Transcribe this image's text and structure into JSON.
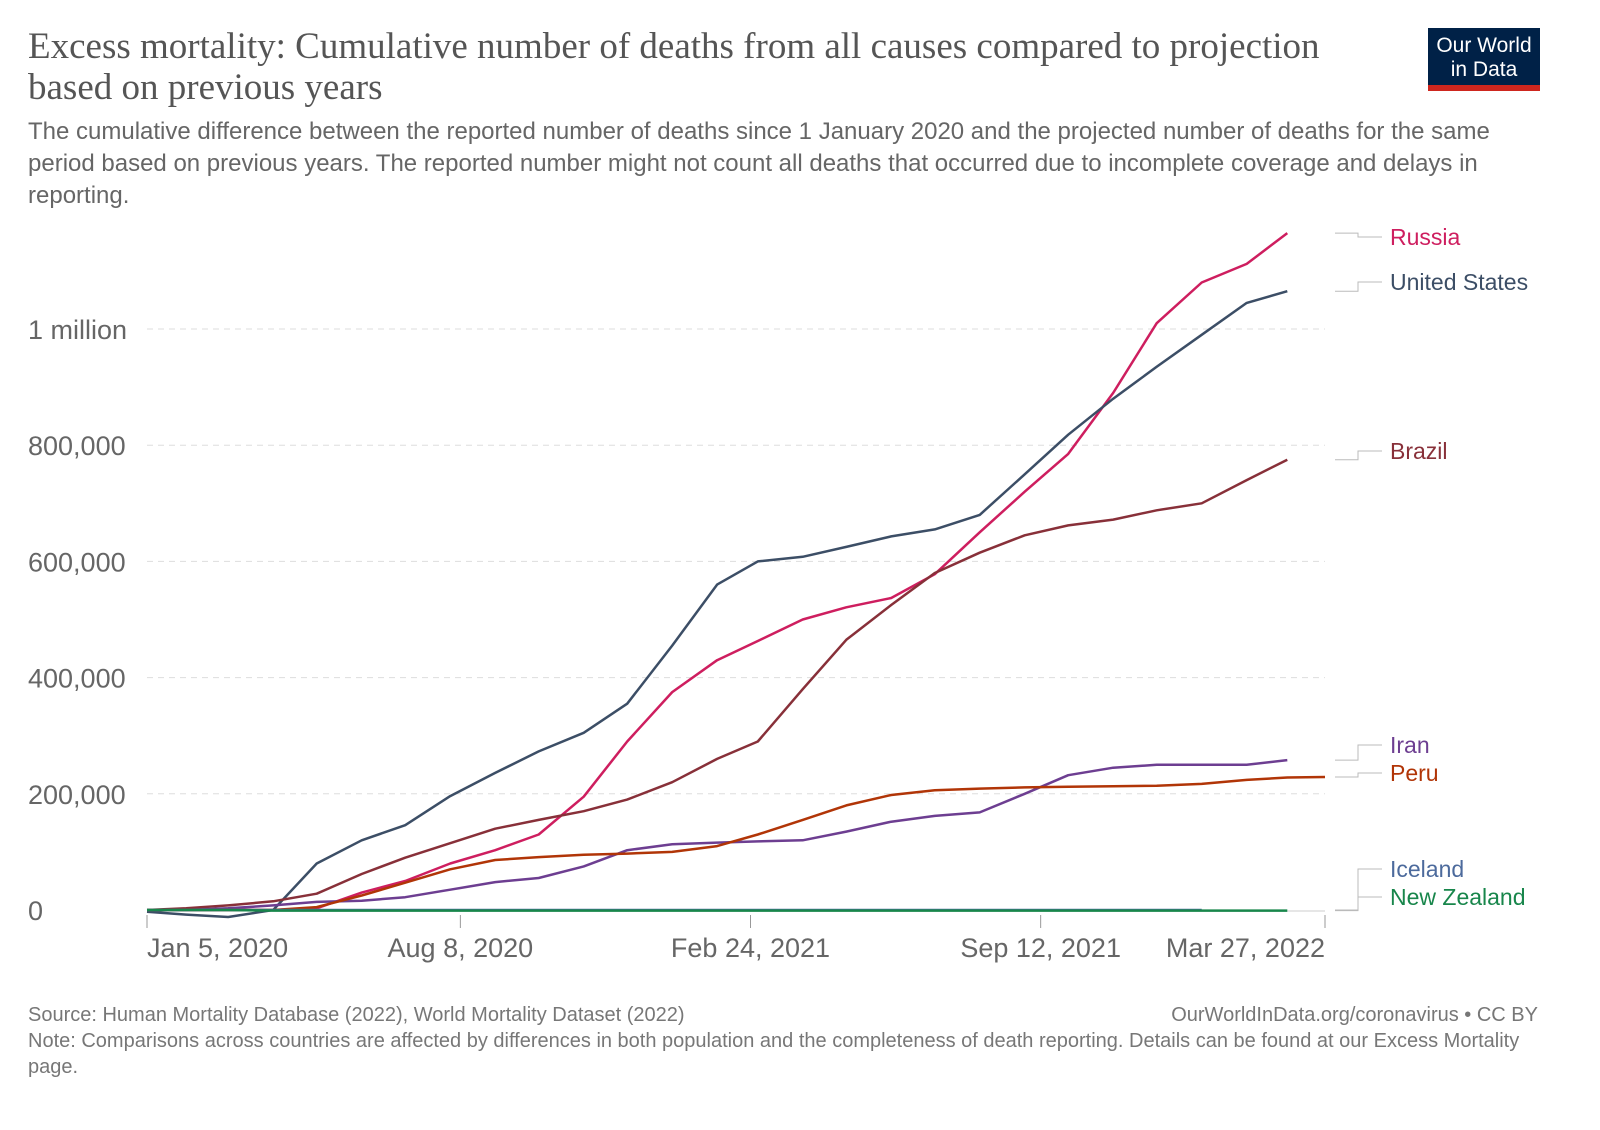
{
  "title": "Excess mortality: Cumulative number of deaths from all causes compared to projection based on previous years",
  "subtitle": "The cumulative difference between the reported number of deaths since 1 January 2020 and the projected number of deaths for the same period based on previous years. The reported number might not count all deaths that occurred due to incomplete coverage and delays in reporting.",
  "logo": {
    "line1": "Our World",
    "line2": "in Data",
    "bg": "#002147",
    "accent": "#ce261e"
  },
  "footer": {
    "source": "Source: Human Mortality Database (2022), World Mortality Dataset (2022)",
    "credit": "OurWorldInData.org/coronavirus • CC BY",
    "note": "Note: Comparisons across countries are affected by differences in both population and the completeness of death reporting. Details can be found at our Excess Mortality page."
  },
  "chart_data": {
    "type": "line",
    "title": "Excess mortality: Cumulative number of deaths from all causes compared to projection based on previous years",
    "xlabel": "",
    "ylabel": "",
    "xlim": [
      "2020-01-05",
      "2022-03-27"
    ],
    "ylim": [
      -20000,
      1180000
    ],
    "grid": "horizontal dashed",
    "legend": "right, inline labels",
    "x_ticks": [
      {
        "date": "2020-01-05",
        "label": "Jan 5, 2020"
      },
      {
        "date": "2020-08-08",
        "label": "Aug 8, 2020"
      },
      {
        "date": "2021-02-24",
        "label": "Feb 24, 2021"
      },
      {
        "date": "2021-09-12",
        "label": "Sep 12, 2021"
      },
      {
        "date": "2022-03-27",
        "label": "Mar 27, 2022"
      }
    ],
    "y_ticks": [
      {
        "value": 0,
        "label": "0"
      },
      {
        "value": 200000,
        "label": "200,000"
      },
      {
        "value": 400000,
        "label": "400,000"
      },
      {
        "value": 600000,
        "label": "600,000"
      },
      {
        "value": 800000,
        "label": "800,000"
      },
      {
        "value": 1000000,
        "label": "1 million"
      }
    ],
    "dates": [
      "2020-01-05",
      "2020-02-01",
      "2020-03-01",
      "2020-04-01",
      "2020-05-01",
      "2020-06-01",
      "2020-07-01",
      "2020-08-01",
      "2020-09-01",
      "2020-10-01",
      "2020-11-01",
      "2020-12-01",
      "2021-01-01",
      "2021-02-01",
      "2021-03-01",
      "2021-04-01",
      "2021-05-01",
      "2021-06-01",
      "2021-07-01",
      "2021-08-01",
      "2021-09-01",
      "2021-10-01",
      "2021-11-01",
      "2021-12-01",
      "2022-01-01",
      "2022-02-01",
      "2022-03-01",
      "2022-03-27"
    ],
    "series": [
      {
        "name": "Russia",
        "color": "#ce1e5f",
        "values": [
          0,
          0,
          0,
          0,
          3000,
          30000,
          50000,
          80000,
          103000,
          130000,
          195000,
          290000,
          375000,
          430000,
          463000,
          500000,
          521000,
          537000,
          578000,
          650000,
          720000,
          785000,
          890000,
          1010000,
          1080000,
          1112000,
          1165000,
          null
        ]
      },
      {
        "name": "United States",
        "color": "#3c4e66",
        "values": [
          -3000,
          -8000,
          -12000,
          0,
          80000,
          120000,
          146000,
          196000,
          236000,
          273000,
          305000,
          355000,
          455000,
          560000,
          600000,
          608000,
          625000,
          643000,
          655000,
          680000,
          750000,
          818000,
          880000,
          935000,
          990000,
          1045000,
          1065000,
          null
        ]
      },
      {
        "name": "Brazil",
        "color": "#883039",
        "values": [
          0,
          3000,
          8000,
          15000,
          28000,
          62000,
          90000,
          115000,
          140000,
          155000,
          170000,
          190000,
          220000,
          260000,
          290000,
          380000,
          465000,
          525000,
          580000,
          615000,
          645000,
          662000,
          672000,
          688000,
          700000,
          740000,
          775000,
          null
        ]
      },
      {
        "name": "Iran",
        "color": "#6d3e91",
        "values": [
          0,
          0,
          3000,
          8000,
          14000,
          16000,
          22000,
          35000,
          48000,
          55000,
          75000,
          103000,
          113000,
          116000,
          118000,
          120000,
          135000,
          152000,
          162000,
          168000,
          200000,
          232000,
          245000,
          250000,
          250000,
          250000,
          258000,
          null
        ]
      },
      {
        "name": "Peru",
        "color": "#b13507",
        "values": [
          0,
          0,
          0,
          0,
          5000,
          25000,
          47000,
          70000,
          86000,
          91000,
          95000,
          97000,
          100000,
          110000,
          130000,
          155000,
          180000,
          198000,
          206000,
          209000,
          211000,
          212000,
          213000,
          214000,
          217000,
          224000,
          228000,
          229000
        ]
      },
      {
        "name": "Iceland",
        "color": "#4c6a9c",
        "values": [
          0,
          0,
          0,
          0,
          0,
          0,
          0,
          0,
          0,
          0,
          0,
          0,
          0,
          0,
          0,
          0,
          0,
          0,
          0,
          0,
          0,
          0,
          0,
          0,
          0,
          null,
          null,
          null
        ]
      },
      {
        "name": "New Zealand",
        "color": "#18864b",
        "values": [
          0,
          0,
          0,
          -1000,
          -1000,
          -1000,
          -1000,
          -1000,
          -1000,
          -1000,
          -1000,
          -1000,
          -1000,
          -1000,
          -1000,
          -1000,
          -1000,
          -1000,
          -1000,
          -1000,
          -1000,
          -1000,
          -1000,
          -1000,
          -1000,
          -1000,
          -1000,
          null
        ]
      }
    ]
  }
}
